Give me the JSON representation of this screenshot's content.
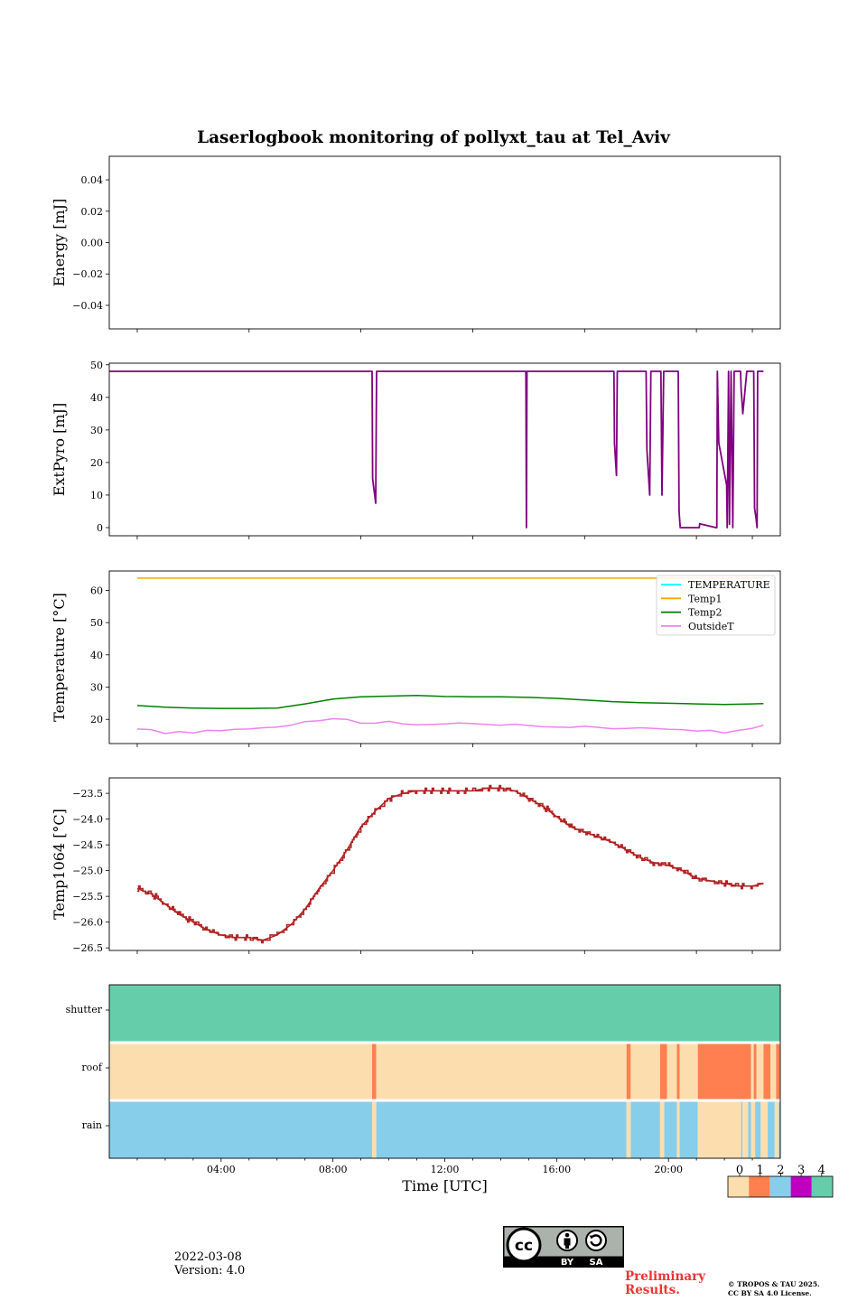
{
  "title": "Laserlogbook monitoring of pollyxt_tau at Tel_Aviv",
  "footer": {
    "date": "2022-03-08",
    "version": "Version: 4.0",
    "preliminary_line1": "Preliminary",
    "preliminary_line2": "Results.",
    "copyright_line1": "© TROPOS & TAU 2025.",
    "copyright_line2": "CC BY SA 4.0 License.",
    "cc_by": "BY",
    "cc_sa": "SA"
  },
  "chart_data": [
    {
      "id": "energy",
      "type": "line",
      "ylabel": "Energy [mJ]",
      "ylim": [
        -0.055,
        0.055
      ],
      "yticks": [
        -0.04,
        -0.02,
        0.0,
        0.02,
        0.04
      ],
      "ytick_labels": [
        "−0.04",
        "−0.02",
        "0.00",
        "0.02",
        "0.04"
      ],
      "xlim": [
        0,
        24
      ],
      "series": []
    },
    {
      "id": "extpyro",
      "type": "line",
      "ylabel": "ExtPyro [mJ]",
      "ylim": [
        -2.5,
        50.5
      ],
      "yticks": [
        0,
        10,
        20,
        30,
        40,
        50
      ],
      "ytick_labels": [
        "0",
        "10",
        "20",
        "30",
        "40",
        "50"
      ],
      "xlim": [
        0,
        24
      ],
      "color": "#800080",
      "series": [
        {
          "x": [
            0.0,
            9.4,
            9.42,
            9.53,
            9.56,
            9.62,
            14.9,
            14.92,
            14.94,
            14.97,
            18.05,
            18.07,
            18.14,
            18.17,
            18.27,
            19.2,
            19.23,
            19.33,
            19.37,
            19.45,
            19.73,
            19.77,
            19.83,
            19.87,
            20.35,
            20.38,
            20.42,
            20.5,
            20.8,
            21.1,
            21.12,
            21.7,
            21.73,
            21.75,
            21.8,
            22.08,
            22.1,
            22.15,
            22.18,
            22.24,
            22.3,
            22.35,
            22.38,
            22.42,
            22.58,
            22.6,
            22.62,
            22.66,
            22.8,
            22.85,
            22.93,
            23.05,
            23.08,
            23.13,
            23.17,
            23.19,
            23.22,
            23.25,
            23.3,
            23.35,
            23.4
          ],
          "y": [
            48,
            48,
            15,
            7.5,
            48,
            48,
            48,
            0,
            48,
            48,
            48,
            26,
            16,
            48,
            48,
            48,
            24,
            10,
            48,
            48,
            48,
            10,
            48,
            48,
            48,
            5,
            0,
            0,
            0,
            0,
            1.2,
            0,
            0,
            48,
            26,
            13,
            0,
            48,
            1,
            48,
            0,
            48,
            48,
            48,
            48,
            42,
            40,
            35,
            48,
            48,
            48,
            48,
            6,
            3,
            0,
            48,
            48,
            48,
            48,
            48,
            48
          ]
        }
      ]
    },
    {
      "id": "temperature",
      "type": "line",
      "ylabel": "Temperature [°C]",
      "ylim": [
        12.5,
        66
      ],
      "yticks": [
        20,
        30,
        40,
        50,
        60
      ],
      "ytick_labels": [
        "20",
        "30",
        "40",
        "50",
        "60"
      ],
      "xlim": [
        0,
        24
      ],
      "legend": "upper-right",
      "series": [
        {
          "name": "TEMPERATURE",
          "color": "#00ffff",
          "x": [],
          "y": []
        },
        {
          "name": "Temp1",
          "color": "#ffa500",
          "x": [
            1,
            23.4
          ],
          "y": [
            63.8,
            63.8
          ]
        },
        {
          "name": "Temp2",
          "color": "#008000",
          "x": [
            1,
            2,
            3,
            4,
            5,
            6,
            7,
            8,
            9,
            10,
            11,
            12,
            13,
            14,
            15,
            16,
            17,
            18,
            19,
            20,
            21,
            22,
            23,
            23.4
          ],
          "y": [
            24.3,
            23.8,
            23.5,
            23.4,
            23.4,
            23.5,
            24.8,
            26.3,
            27,
            27.2,
            27.4,
            27.1,
            27,
            27,
            26.8,
            26.5,
            26,
            25.5,
            25.2,
            25,
            24.8,
            24.6,
            24.8,
            24.9
          ]
        },
        {
          "name": "OutsideT",
          "color": "#ee82ee",
          "x": [
            1,
            1.5,
            2,
            2.5,
            3,
            3.5,
            4,
            4.5,
            5,
            5.5,
            6,
            6.5,
            7,
            7.5,
            8,
            8.5,
            9,
            9.5,
            10,
            10.5,
            11,
            11.5,
            12,
            12.5,
            13,
            13.5,
            14,
            14.5,
            15,
            15.5,
            16,
            16.5,
            17,
            17.5,
            18,
            18.5,
            19,
            19.5,
            20,
            20.5,
            21,
            21.5,
            22,
            22.5,
            23,
            23.4
          ],
          "y": [
            17,
            16.8,
            15.6,
            16.2,
            15.8,
            16.6,
            16.5,
            16.9,
            17,
            17.4,
            17.6,
            18.2,
            19.3,
            19.6,
            20.2,
            20,
            18.8,
            18.8,
            19.4,
            18.6,
            18.3,
            18.4,
            18.6,
            18.9,
            18.7,
            18.4,
            18.2,
            18.5,
            18.1,
            17.7,
            17.6,
            17.5,
            17.9,
            17.5,
            17.1,
            17.2,
            17.4,
            17.2,
            16.9,
            16.8,
            16.4,
            16.6,
            15.8,
            16.6,
            17.2,
            18.2
          ]
        }
      ]
    },
    {
      "id": "temp1064",
      "type": "line",
      "ylabel": "Temp1064 [°C]",
      "ylim": [
        -26.55,
        -23.2
      ],
      "yticks": [
        -26.5,
        -26.0,
        -25.5,
        -25.0,
        -24.5,
        -24.0,
        -23.5
      ],
      "ytick_labels": [
        "−26.5",
        "−26.0",
        "−25.5",
        "−25.0",
        "−24.5",
        "−24.0",
        "−23.5"
      ],
      "xlim": [
        0,
        24
      ],
      "color": "#b22222",
      "series": [
        {
          "x": [
            1,
            1.5,
            2,
            2.5,
            3,
            3.5,
            4,
            4.5,
            5,
            5.5,
            6,
            6.5,
            7,
            7.5,
            8,
            8.5,
            9,
            9.5,
            10,
            10.5,
            11,
            11.5,
            12,
            12.5,
            13,
            13.5,
            14,
            14.5,
            15,
            15.5,
            16,
            16.5,
            17,
            17.5,
            18,
            18.5,
            19,
            19.5,
            20,
            20.5,
            21,
            21.5,
            22,
            22.5,
            23,
            23.4
          ],
          "y": [
            -25.35,
            -25.45,
            -25.65,
            -25.85,
            -26.0,
            -26.15,
            -26.25,
            -26.3,
            -26.3,
            -26.35,
            -26.25,
            -26.05,
            -25.75,
            -25.35,
            -25.0,
            -24.6,
            -24.15,
            -23.85,
            -23.6,
            -23.5,
            -23.45,
            -23.45,
            -23.45,
            -23.45,
            -23.45,
            -23.4,
            -23.4,
            -23.45,
            -23.6,
            -23.75,
            -23.95,
            -24.15,
            -24.25,
            -24.35,
            -24.45,
            -24.6,
            -24.75,
            -24.85,
            -24.9,
            -25.0,
            -25.15,
            -25.2,
            -25.25,
            -25.3,
            -25.3,
            -25.25
          ]
        }
      ]
    },
    {
      "id": "status",
      "type": "heatmap",
      "xlabel": "Time [UTC]",
      "xlim": [
        0,
        24
      ],
      "xticks": [
        4,
        8,
        12,
        16,
        20
      ],
      "xtick_labels": [
        "04:00",
        "08:00",
        "12:00",
        "16:00",
        "20:00"
      ],
      "rows": [
        "shutter",
        "roof",
        "rain"
      ],
      "colorbar": {
        "labels": [
          "0",
          "1",
          "2",
          "3",
          "4"
        ],
        "colors": [
          "#fcdeae",
          "#ff7f50",
          "#87ceeb",
          "#c000c0",
          "#66cdaa"
        ]
      },
      "segments": {
        "shutter": [
          {
            "from": 0,
            "to": 24,
            "value": 4
          }
        ],
        "roof": [
          {
            "from": 0,
            "to": 9.4,
            "value": 0
          },
          {
            "from": 9.4,
            "to": 9.55,
            "value": 1
          },
          {
            "from": 9.55,
            "to": 18.5,
            "value": 0
          },
          {
            "from": 18.5,
            "to": 18.65,
            "value": 1
          },
          {
            "from": 18.65,
            "to": 19.7,
            "value": 0
          },
          {
            "from": 19.7,
            "to": 19.95,
            "value": 1
          },
          {
            "from": 19.95,
            "to": 20.3,
            "value": 0
          },
          {
            "from": 20.3,
            "to": 20.4,
            "value": 1
          },
          {
            "from": 20.4,
            "to": 21.05,
            "value": 0
          },
          {
            "from": 21.05,
            "to": 22.95,
            "value": 1
          },
          {
            "from": 22.95,
            "to": 23.05,
            "value": 0
          },
          {
            "from": 23.05,
            "to": 23.15,
            "value": 1
          },
          {
            "from": 23.15,
            "to": 23.4,
            "value": 0
          },
          {
            "from": 23.4,
            "to": 23.65,
            "value": 1
          },
          {
            "from": 23.65,
            "to": 23.85,
            "value": 0
          },
          {
            "from": 23.85,
            "to": 23.98,
            "value": 1
          },
          {
            "from": 23.98,
            "to": 24,
            "value": 0
          }
        ],
        "rain": [
          {
            "from": 0,
            "to": 9.4,
            "value": 2
          },
          {
            "from": 9.4,
            "to": 9.55,
            "value": 0
          },
          {
            "from": 9.55,
            "to": 18.5,
            "value": 2
          },
          {
            "from": 18.5,
            "to": 18.65,
            "value": 0
          },
          {
            "from": 18.65,
            "to": 19.7,
            "value": 2
          },
          {
            "from": 19.7,
            "to": 19.85,
            "value": 0
          },
          {
            "from": 19.85,
            "to": 20.3,
            "value": 2
          },
          {
            "from": 20.3,
            "to": 20.4,
            "value": 0
          },
          {
            "from": 20.4,
            "to": 21.05,
            "value": 2
          },
          {
            "from": 21.05,
            "to": 22.6,
            "value": 0
          },
          {
            "from": 22.6,
            "to": 22.65,
            "value": 2
          },
          {
            "from": 22.65,
            "to": 22.85,
            "value": 0
          },
          {
            "from": 22.85,
            "to": 22.95,
            "value": 2
          },
          {
            "from": 22.95,
            "to": 23.1,
            "value": 0
          },
          {
            "from": 23.1,
            "to": 23.3,
            "value": 2
          },
          {
            "from": 23.3,
            "to": 23.55,
            "value": 0
          },
          {
            "from": 23.55,
            "to": 23.8,
            "value": 2
          },
          {
            "from": 23.8,
            "to": 23.95,
            "value": 0
          },
          {
            "from": 23.95,
            "to": 24,
            "value": 2
          }
        ]
      }
    }
  ]
}
